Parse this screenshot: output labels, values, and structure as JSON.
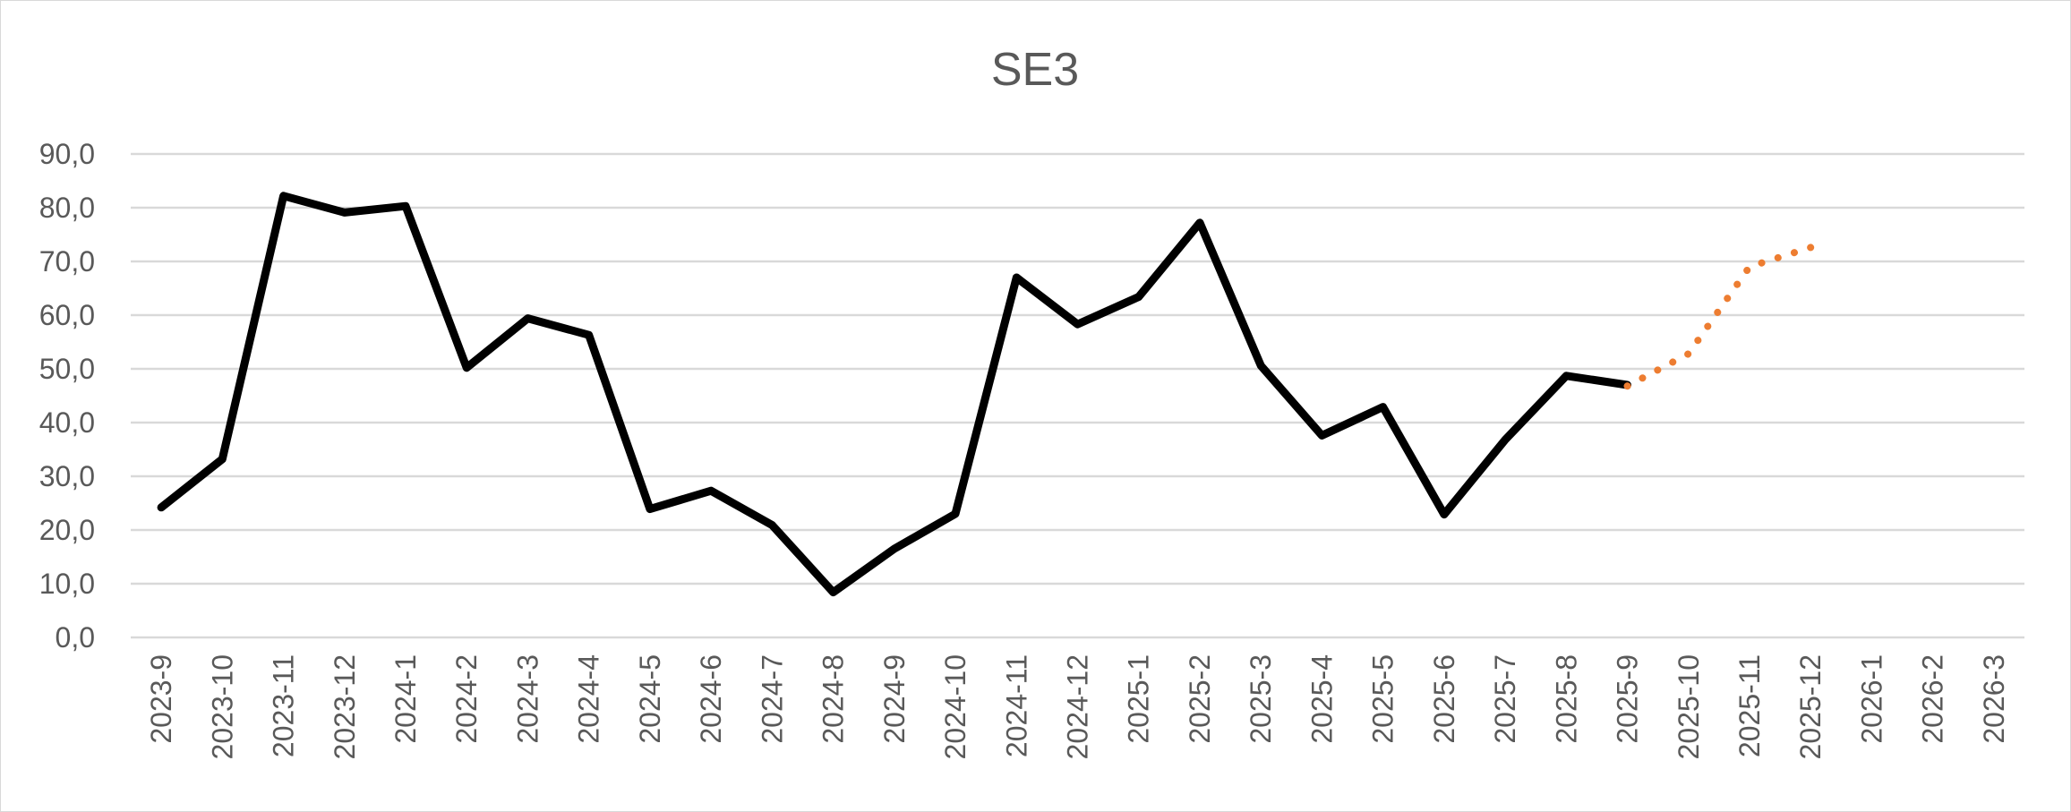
{
  "chart_data": {
    "type": "line",
    "title": "SE3",
    "xlabel": "",
    "ylabel": "",
    "ylim": [
      0,
      90
    ],
    "y_ticks": [
      "0,0",
      "10,0",
      "20,0",
      "30,0",
      "40,0",
      "50,0",
      "60,0",
      "70,0",
      "80,0",
      "90,0"
    ],
    "grid": true,
    "legend": "none",
    "categories": [
      "2023-9",
      "2023-10",
      "2023-11",
      "2023-12",
      "2024-1",
      "2024-2",
      "2024-3",
      "2024-4",
      "2024-5",
      "2024-6",
      "2024-7",
      "2024-8",
      "2024-9",
      "2024-10",
      "2024-11",
      "2024-12",
      "2025-1",
      "2025-2",
      "2025-3",
      "2025-4",
      "2025-5",
      "2025-6",
      "2025-7",
      "2025-8",
      "2025-9",
      "2025-10",
      "2025-11",
      "2025-12",
      "2026-1",
      "2026-2",
      "2026-3"
    ],
    "series": [
      {
        "style": "solid",
        "color": "#000000",
        "values": [
          24.2,
          33.2,
          82.2,
          79.1,
          80.3,
          50.2,
          59.4,
          56.3,
          23.9,
          27.3,
          20.9,
          8.4,
          16.5,
          23.0,
          67.0,
          58.3,
          63.4,
          77.2,
          50.6,
          37.6,
          42.9,
          22.9,
          36.8,
          48.7,
          47.0,
          null,
          null,
          null,
          null,
          null,
          null
        ]
      },
      {
        "style": "dotted",
        "color": "#ED7D31",
        "values": [
          null,
          null,
          null,
          null,
          null,
          null,
          null,
          null,
          null,
          null,
          null,
          null,
          null,
          null,
          null,
          null,
          null,
          null,
          null,
          null,
          null,
          null,
          null,
          null,
          46.8,
          52.8,
          69.0,
          72.6,
          null,
          null,
          null
        ]
      }
    ]
  }
}
